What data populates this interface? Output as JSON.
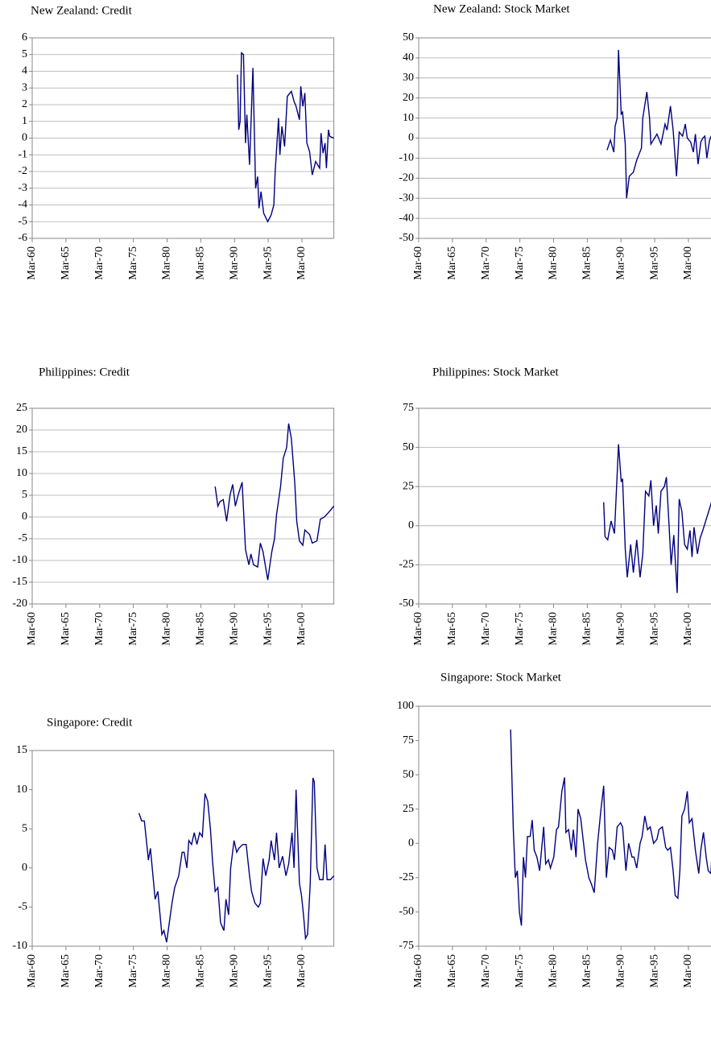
{
  "chart_data": [
    {
      "type": "line",
      "title": "New Zealand: Credit",
      "color": "#000080",
      "grid": true,
      "xlim": [
        1960.17,
        2004.9
      ],
      "ylim": [
        -6,
        6
      ],
      "yticks": [
        -6,
        -5,
        -4,
        -3,
        -2,
        -1,
        0,
        1,
        2,
        3,
        4,
        5,
        6
      ],
      "xticks": [
        {
          "value": 1960.17,
          "label": "Mar-60"
        },
        {
          "value": 1965.17,
          "label": "Mar-65"
        },
        {
          "value": 1970.17,
          "label": "Mar-70"
        },
        {
          "value": 1975.17,
          "label": "Mar-75"
        },
        {
          "value": 1980.17,
          "label": "Mar-80"
        },
        {
          "value": 1985.17,
          "label": "Mar-85"
        },
        {
          "value": 1990.17,
          "label": "Mar-90"
        },
        {
          "value": 1995.17,
          "label": "Mar-95"
        },
        {
          "value": 2000.17,
          "label": "Mar-00"
        }
      ],
      "x": [
        1990.6,
        1990.8,
        1991.0,
        1991.2,
        1991.5,
        1991.8,
        1992.0,
        1992.4,
        1992.9,
        1993.3,
        1993.6,
        1993.8,
        1994.1,
        1994.5,
        1995.1,
        1995.6,
        1996.0,
        1996.2,
        1996.7,
        1996.9,
        1997.2,
        1997.6,
        1998.0,
        1998.6,
        1999.0,
        1999.3,
        1999.8,
        2000.0,
        2000.3,
        2000.6,
        2000.9,
        2001.3,
        2001.7,
        2002.2,
        2002.8,
        2003.0,
        2003.3,
        2003.6,
        2003.8,
        2004.1,
        2004.3,
        2004.9
      ],
      "values": [
        3.8,
        0.5,
        1.0,
        5.1,
        5.0,
        -0.3,
        1.4,
        -1.6,
        4.2,
        -3.0,
        -2.3,
        -4.2,
        -3.2,
        -4.5,
        -5.0,
        -4.6,
        -4.0,
        -2.0,
        1.2,
        -1.0,
        0.7,
        -0.5,
        2.5,
        2.8,
        2.2,
        1.9,
        1.1,
        3.1,
        1.9,
        2.7,
        -0.3,
        -0.8,
        -2.2,
        -1.4,
        -1.8,
        0.3,
        -0.9,
        -0.3,
        -1.8,
        0.5,
        0.1,
        0.0
      ]
    },
    {
      "type": "line",
      "title": "New Zealand: Stock Market",
      "color": "#000080",
      "grid": true,
      "xlim": [
        1960.17,
        2004.9
      ],
      "ylim": [
        -50,
        50
      ],
      "yticks": [
        -50,
        -40,
        -30,
        -20,
        -10,
        0,
        10,
        20,
        30,
        40,
        50
      ],
      "xticks": [
        {
          "value": 1960.17,
          "label": "Mar-60"
        },
        {
          "value": 1965.17,
          "label": "Mar-65"
        },
        {
          "value": 1970.17,
          "label": "Mar-70"
        },
        {
          "value": 1975.17,
          "label": "Mar-75"
        },
        {
          "value": 1980.17,
          "label": "Mar-80"
        },
        {
          "value": 1985.17,
          "label": "Mar-85"
        },
        {
          "value": 1990.17,
          "label": "Mar-90"
        },
        {
          "value": 1995.17,
          "label": "Mar-95"
        },
        {
          "value": 2000.17,
          "label": "Mar-00"
        }
      ],
      "x": [
        1988.1,
        1988.6,
        1989.1,
        1989.3,
        1989.6,
        1989.8,
        1990.2,
        1990.4,
        1990.8,
        1991.0,
        1991.4,
        1992.0,
        1992.5,
        1993.2,
        1993.4,
        1994.0,
        1994.4,
        1994.6,
        1995.5,
        1996.1,
        1996.7,
        1997.0,
        1997.5,
        1997.9,
        1998.4,
        1998.8,
        1999.3,
        1999.7,
        2000.0,
        2000.5,
        2000.9,
        2001.2,
        2001.6,
        2002.0,
        2002.3,
        2002.6,
        2002.9,
        2003.3,
        2003.8
      ],
      "values": [
        -6,
        -1,
        -7,
        6,
        10,
        44,
        12,
        13,
        -3,
        -30,
        -19,
        -17,
        -11,
        -5,
        10,
        23,
        10,
        -3,
        2,
        -3,
        7,
        4,
        16,
        4,
        -19,
        3,
        1,
        7,
        0,
        -2,
        -7,
        2,
        -13,
        -2,
        0,
        1,
        -10,
        -1,
        3
      ]
    },
    {
      "type": "line",
      "title": "Philippines: Credit",
      "color": "#000080",
      "grid": true,
      "xlim": [
        1960.17,
        2004.9
      ],
      "ylim": [
        -20,
        25
      ],
      "yticks": [
        -20,
        -15,
        -10,
        -5,
        0,
        5,
        10,
        15,
        20,
        25
      ],
      "xticks": [
        {
          "value": 1960.17,
          "label": "Mar-60"
        },
        {
          "value": 1965.17,
          "label": "Mar-65"
        },
        {
          "value": 1970.17,
          "label": "Mar-70"
        },
        {
          "value": 1975.17,
          "label": "Mar-75"
        },
        {
          "value": 1980.17,
          "label": "Mar-80"
        },
        {
          "value": 1985.17,
          "label": "Mar-85"
        },
        {
          "value": 1990.17,
          "label": "Mar-90"
        },
        {
          "value": 1995.17,
          "label": "Mar-95"
        },
        {
          "value": 2000.17,
          "label": "Mar-00"
        }
      ],
      "x": [
        1987.3,
        1987.7,
        1988.0,
        1988.5,
        1989.0,
        1989.5,
        1989.9,
        1990.3,
        1990.7,
        1991.3,
        1991.8,
        1992.3,
        1992.6,
        1993.0,
        1993.6,
        1994.0,
        1994.4,
        1995.1,
        1995.7,
        1996.1,
        1996.4,
        1997.0,
        1997.4,
        1997.9,
        1998.2,
        1998.6,
        1999.1,
        1999.4,
        1999.8,
        2000.3,
        2000.6,
        2001.3,
        2001.7,
        2002.4,
        2002.9,
        2003.5,
        2004.1,
        2004.9
      ],
      "values": [
        7,
        2.5,
        3.5,
        4,
        -1,
        5,
        7.5,
        2.5,
        5,
        8,
        -7.5,
        -11,
        -8.5,
        -11,
        -11.5,
        -6,
        -8,
        -14.5,
        -8,
        -5,
        0.5,
        7,
        13.5,
        16,
        21.5,
        18,
        8,
        -1,
        -5.5,
        -6.5,
        -3,
        -4,
        -6,
        -5.5,
        -0.5,
        0,
        1,
        2.5
      ]
    },
    {
      "type": "line",
      "title": "Philippines: Stock Market",
      "color": "#000080",
      "grid": true,
      "xlim": [
        1960.17,
        2004.9
      ],
      "ylim": [
        -50,
        75
      ],
      "yticks": [
        -50,
        -25,
        0,
        25,
        50,
        75
      ],
      "xticks": [
        {
          "value": 1960.17,
          "label": "Mar-60"
        },
        {
          "value": 1965.17,
          "label": "Mar-65"
        },
        {
          "value": 1970.17,
          "label": "Mar-70"
        },
        {
          "value": 1975.17,
          "label": "Mar-75"
        },
        {
          "value": 1980.17,
          "label": "Mar-80"
        },
        {
          "value": 1985.17,
          "label": "Mar-85"
        },
        {
          "value": 1990.17,
          "label": "Mar-90"
        },
        {
          "value": 1995.17,
          "label": "Mar-95"
        },
        {
          "value": 2000.17,
          "label": "Mar-00"
        }
      ],
      "x": [
        1987.6,
        1987.8,
        1988.2,
        1988.7,
        1989.2,
        1989.8,
        1990.2,
        1990.4,
        1990.8,
        1991.1,
        1991.6,
        1992.0,
        1992.5,
        1993.0,
        1993.4,
        1993.8,
        1994.3,
        1994.6,
        1995.0,
        1995.4,
        1995.7,
        1996.1,
        1996.6,
        1996.9,
        1997.3,
        1997.6,
        1998.0,
        1998.5,
        1998.8,
        1999.2,
        1999.6,
        2000.0,
        2000.4,
        2000.7,
        2001.0,
        2001.5,
        2001.9,
        2002.3,
        2003.8
      ],
      "values": [
        15,
        -7,
        -9,
        3,
        -5,
        52,
        28,
        30,
        -15,
        -33,
        -12,
        -30,
        -9,
        -33,
        -18,
        22,
        19,
        29,
        0,
        13,
        -5,
        22,
        25,
        31,
        0,
        -25,
        -6,
        -43,
        17,
        9,
        -12,
        -15,
        -3,
        -20,
        -1,
        -18,
        -8,
        -3,
        18
      ]
    },
    {
      "type": "line",
      "title": "Singapore: Credit",
      "color": "#000080",
      "grid": false,
      "xlim": [
        1960.17,
        2004.9
      ],
      "ylim": [
        -10,
        15
      ],
      "yticks": [
        -10,
        -5,
        0,
        5,
        10,
        15
      ],
      "xticks": [
        {
          "value": 1960.17,
          "label": "Mar-60"
        },
        {
          "value": 1965.17,
          "label": "Mar-65"
        },
        {
          "value": 1970.17,
          "label": "Mar-70"
        },
        {
          "value": 1975.17,
          "label": "Mar-75"
        },
        {
          "value": 1980.17,
          "label": "Mar-80"
        },
        {
          "value": 1985.17,
          "label": "Mar-85"
        },
        {
          "value": 1990.17,
          "label": "Mar-90"
        },
        {
          "value": 1995.17,
          "label": "Mar-95"
        },
        {
          "value": 2000.17,
          "label": "Mar-00"
        }
      ],
      "x": [
        1976.0,
        1976.4,
        1976.8,
        1977.4,
        1977.7,
        1978.4,
        1978.8,
        1979.4,
        1979.7,
        1980.1,
        1980.5,
        1980.9,
        1981.3,
        1981.9,
        1982.4,
        1982.7,
        1983.1,
        1983.4,
        1983.8,
        1984.2,
        1984.6,
        1985.0,
        1985.4,
        1985.8,
        1986.2,
        1986.6,
        1986.9,
        1987.3,
        1987.7,
        1988.1,
        1988.6,
        1988.9,
        1989.3,
        1989.6,
        1990.1,
        1990.5,
        1990.8,
        1991.4,
        1991.9,
        1992.4,
        1992.7,
        1993.2,
        1993.7,
        1994.0,
        1994.4,
        1994.8,
        1995.3,
        1995.6,
        1996.1,
        1996.4,
        1996.8,
        1997.3,
        1997.8,
        1998.2,
        1998.7,
        1999.0,
        1999.3,
        1999.8,
        2000.1,
        2000.4,
        2000.7,
        2001.0,
        2001.4,
        2001.8,
        2002.0,
        2002.4,
        2002.8,
        2003.3,
        2003.6,
        2003.9,
        2004.4,
        2004.9
      ],
      "values": [
        7,
        6,
        6,
        1,
        2.5,
        -4,
        -3,
        -8.5,
        -8,
        -9.5,
        -7,
        -4.5,
        -2.5,
        -1,
        2,
        2,
        0,
        3.5,
        3,
        4.5,
        3,
        4.5,
        4,
        9.5,
        8.5,
        5,
        1,
        -3,
        -2.5,
        -7,
        -8,
        -4,
        -6,
        0,
        3.5,
        2,
        2.5,
        3,
        3,
        -1,
        -3,
        -4.5,
        -5,
        -4.5,
        1.2,
        -1,
        1,
        3.5,
        1,
        4.5,
        0,
        1.5,
        -1,
        0.5,
        4.5,
        0,
        10,
        -2,
        -3.5,
        -6,
        -9,
        -8.5,
        -2,
        11.5,
        11,
        0,
        -1.5,
        -1.5,
        3,
        -1.5,
        -1.5,
        -1
      ]
    },
    {
      "type": "line",
      "title": "Singapore: Stock Market",
      "color": "#000080",
      "grid": false,
      "xlim": [
        1960.17,
        2004.9
      ],
      "ylim": [
        -75,
        100
      ],
      "yticks": [
        -75,
        -50,
        -25,
        0,
        25,
        50,
        75,
        100
      ],
      "xticks": [
        {
          "value": 1960.17,
          "label": "Mar-60"
        },
        {
          "value": 1965.17,
          "label": "Mar-65"
        },
        {
          "value": 1970.17,
          "label": "Mar-70"
        },
        {
          "value": 1975.17,
          "label": "Mar-75"
        },
        {
          "value": 1980.17,
          "label": "Mar-80"
        },
        {
          "value": 1985.17,
          "label": "Mar-85"
        },
        {
          "value": 1990.17,
          "label": "Mar-90"
        },
        {
          "value": 1995.17,
          "label": "Mar-95"
        },
        {
          "value": 2000.17,
          "label": "Mar-00"
        }
      ],
      "x": [
        1973.8,
        1974.2,
        1974.5,
        1974.8,
        1975.1,
        1975.4,
        1975.7,
        1976.0,
        1976.3,
        1976.7,
        1977.0,
        1977.3,
        1977.7,
        1978.1,
        1978.7,
        1979.0,
        1979.4,
        1979.7,
        1980.2,
        1980.6,
        1980.9,
        1981.4,
        1981.8,
        1982.0,
        1982.4,
        1982.8,
        1983.1,
        1983.5,
        1983.8,
        1984.2,
        1984.5,
        1984.9,
        1985.4,
        1985.8,
        1986.2,
        1986.7,
        1987.2,
        1987.6,
        1988.0,
        1988.4,
        1988.9,
        1989.2,
        1989.6,
        1990.1,
        1990.4,
        1990.9,
        1991.3,
        1991.8,
        1992.1,
        1992.5,
        1993.0,
        1993.3,
        1993.7,
        1994.1,
        1994.5,
        1995.0,
        1995.5,
        1995.8,
        1996.3,
        1996.8,
        1997.1,
        1997.5,
        1997.9,
        1998.2,
        1998.6,
        1998.9,
        1999.2,
        1999.6,
        2000.0,
        2000.3,
        2000.7,
        2001.2,
        2001.7,
        2002.0,
        2002.4,
        2002.8,
        2003.1,
        2003.5,
        2003.8
      ],
      "values": [
        83,
        10,
        -25,
        -20,
        -50,
        -60,
        -10,
        -25,
        5,
        5,
        17,
        -5,
        -10,
        -20,
        12,
        -15,
        -12,
        -18,
        -10,
        10,
        12,
        38,
        48,
        8,
        10,
        -5,
        10,
        -10,
        25,
        18,
        5,
        -12,
        -25,
        -30,
        -36,
        0,
        25,
        42,
        -25,
        -3,
        -5,
        -12,
        12,
        15,
        12,
        -20,
        0,
        -10,
        -10,
        -18,
        0,
        5,
        20,
        10,
        12,
        0,
        3,
        10,
        12,
        -3,
        -5,
        -3,
        -20,
        -38,
        -40,
        -20,
        20,
        25,
        38,
        15,
        18,
        -5,
        -22,
        -5,
        8,
        -10,
        -20,
        -22,
        8
      ]
    }
  ]
}
